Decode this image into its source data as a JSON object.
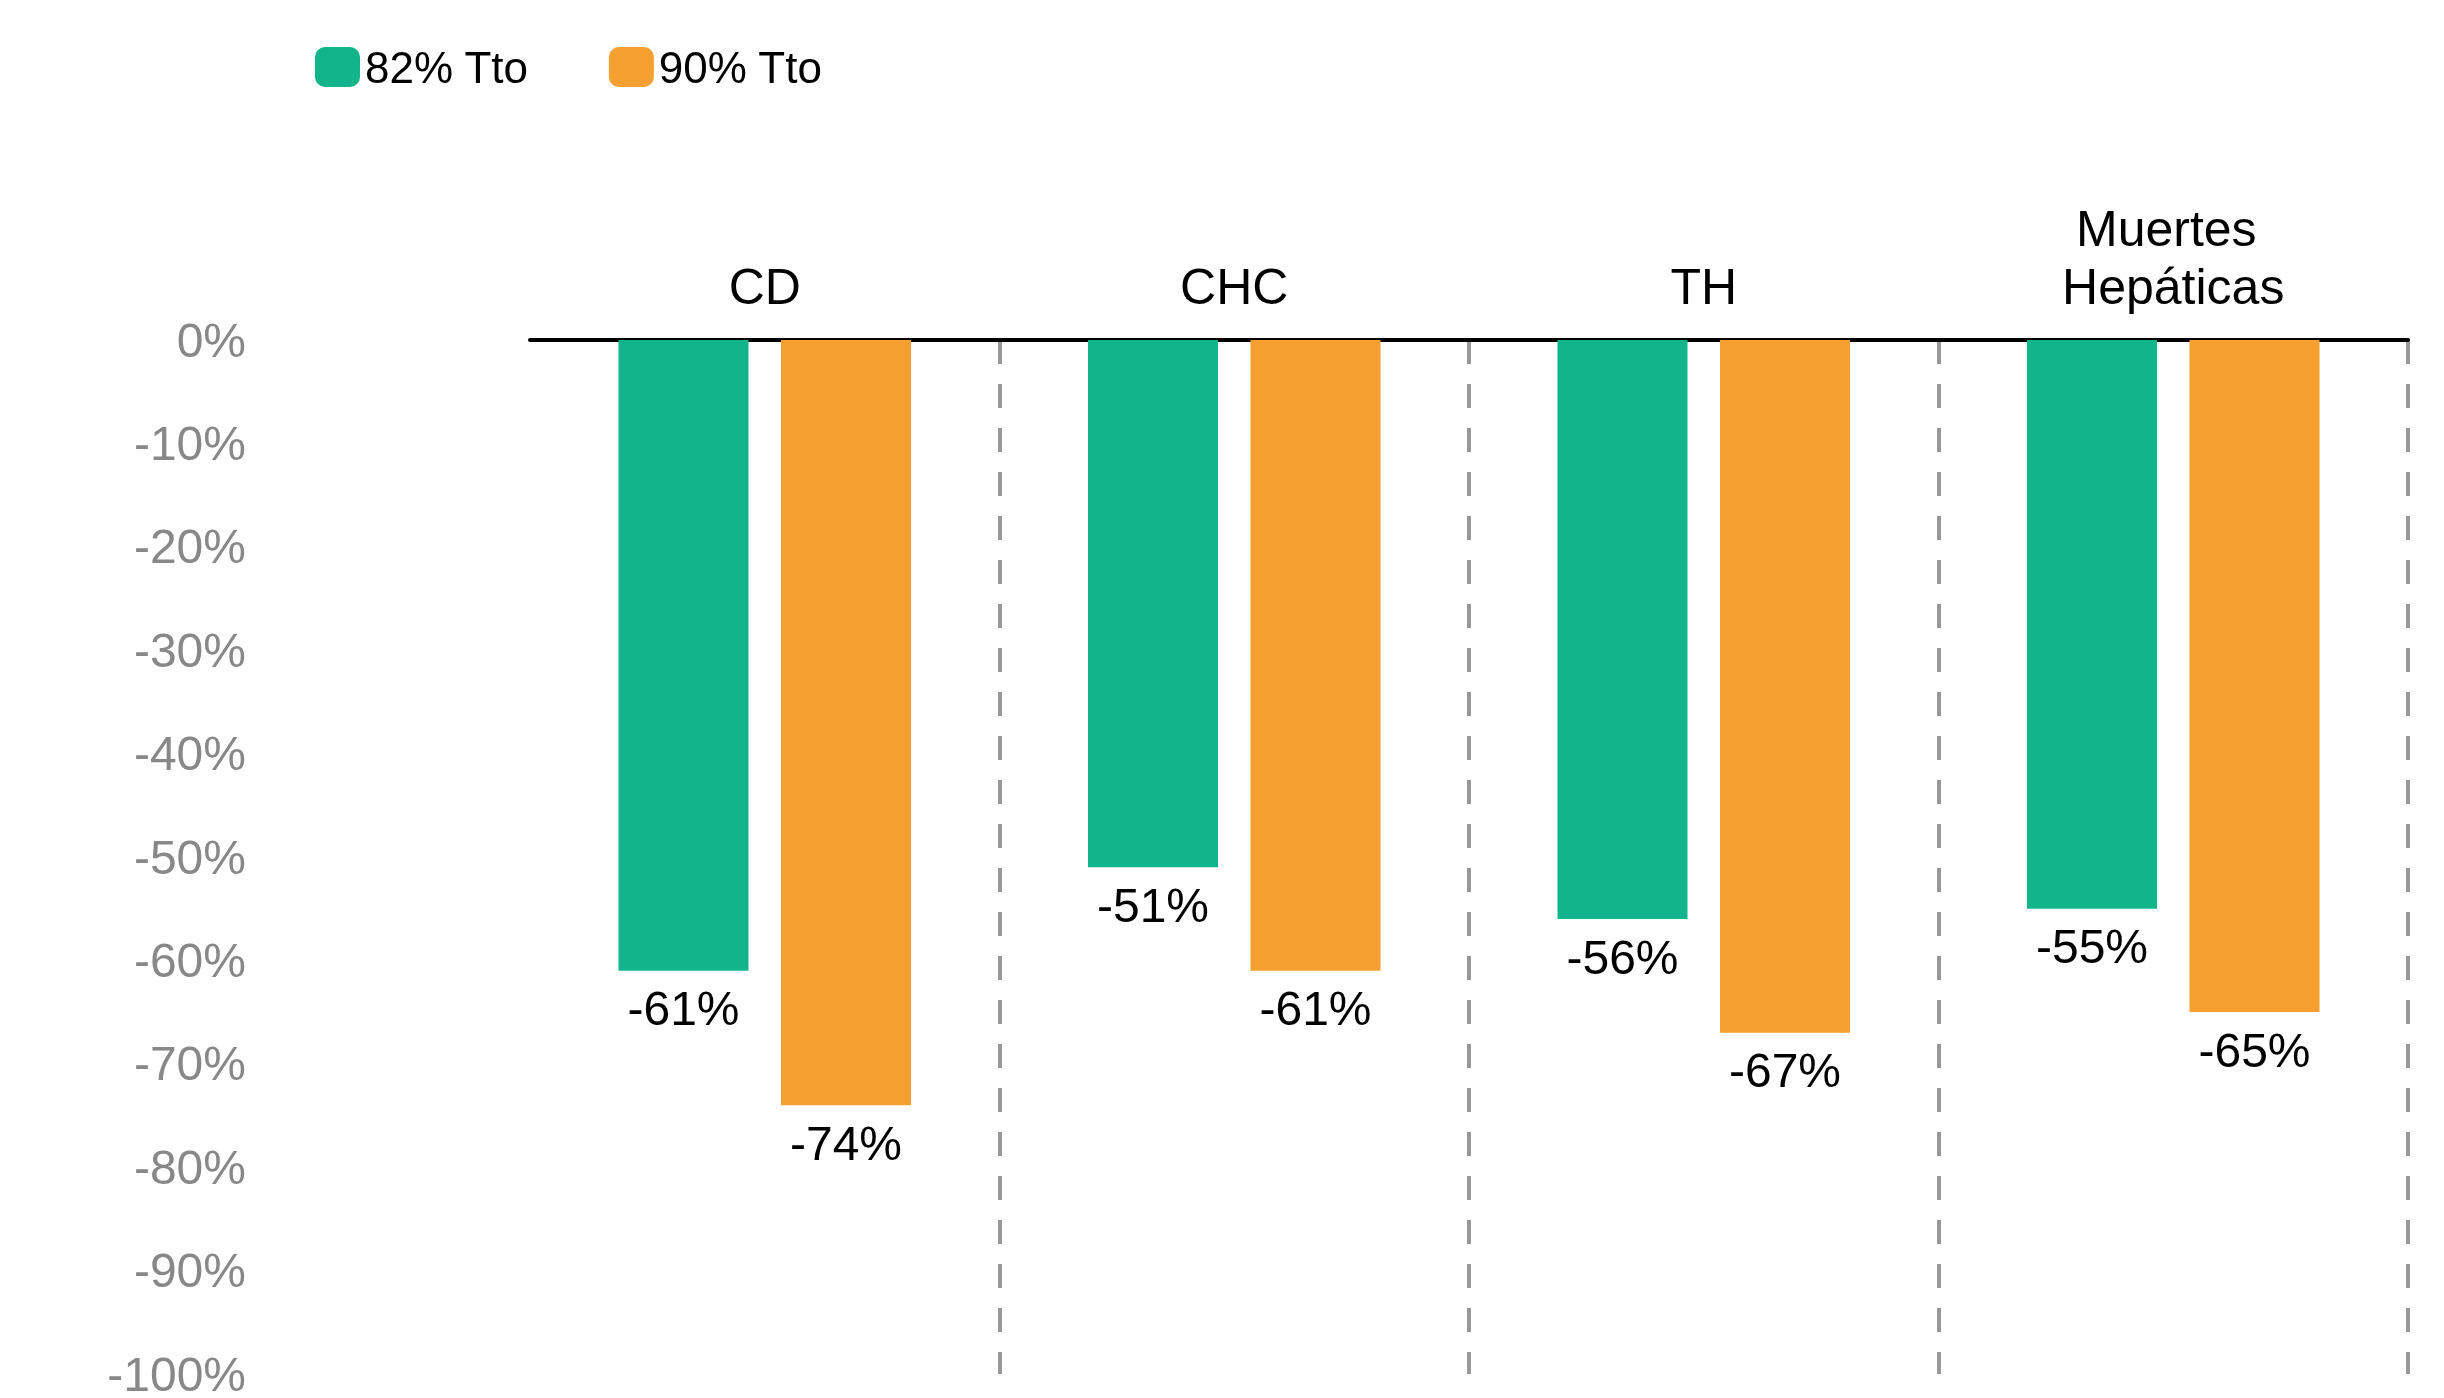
{
  "chart_data": {
    "type": "bar",
    "categories": [
      "CD",
      "CHC",
      "TH",
      "Muertes Hepáticas"
    ],
    "series": [
      {
        "name": "82% Tto",
        "color": "#12b48c",
        "values": [
          -61,
          -51,
          -56,
          -55
        ],
        "value_labels": [
          "-61%",
          "-51%",
          "-56%",
          "-55%"
        ]
      },
      {
        "name": "90% Tto",
        "color": "#f5a030",
        "values": [
          -74,
          -61,
          -67,
          -65
        ],
        "value_labels": [
          "-74%",
          "-61%",
          "-67%",
          "-65%"
        ]
      }
    ],
    "ylim": [
      -100,
      0
    ],
    "yticks": [
      {
        "value": 0,
        "label": "0%"
      },
      {
        "value": -10,
        "label": "-10%"
      },
      {
        "value": -20,
        "label": "-20%"
      },
      {
        "value": -30,
        "label": "-30%"
      },
      {
        "value": -40,
        "label": "-40%"
      },
      {
        "value": -50,
        "label": "-50%"
      },
      {
        "value": -60,
        "label": "-60%"
      },
      {
        "value": -70,
        "label": "-70%"
      },
      {
        "value": -80,
        "label": "-80%"
      },
      {
        "value": -90,
        "label": "-90%"
      },
      {
        "value": -100,
        "label": "-100%"
      }
    ],
    "grid": "x",
    "legend": "top left"
  }
}
